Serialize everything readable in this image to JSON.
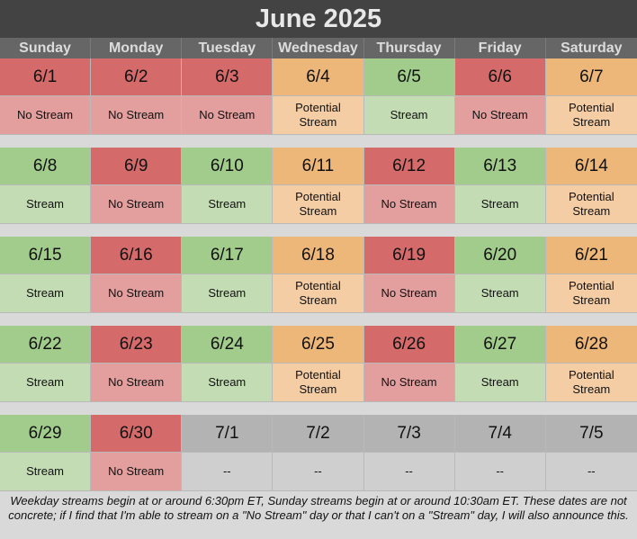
{
  "title": "June 2025",
  "day_names": [
    "Sunday",
    "Monday",
    "Tuesday",
    "Wednesday",
    "Thursday",
    "Friday",
    "Saturday"
  ],
  "status_colors": {
    "no_stream": "#d56a6a",
    "stream": "#a2cc8b",
    "potential": "#eeb77a",
    "outside_month": "#b3b3b3"
  },
  "weeks": [
    [
      {
        "date": "6/1",
        "status": "No Stream",
        "kind": "nostream"
      },
      {
        "date": "6/2",
        "status": "No Stream",
        "kind": "nostream"
      },
      {
        "date": "6/3",
        "status": "No Stream",
        "kind": "nostream"
      },
      {
        "date": "6/4",
        "status": "Potential Stream",
        "kind": "potential"
      },
      {
        "date": "6/5",
        "status": "Stream",
        "kind": "stream"
      },
      {
        "date": "6/6",
        "status": "No Stream",
        "kind": "nostream"
      },
      {
        "date": "6/7",
        "status": "Potential Stream",
        "kind": "potential"
      }
    ],
    [
      {
        "date": "6/8",
        "status": "Stream",
        "kind": "stream"
      },
      {
        "date": "6/9",
        "status": "No Stream",
        "kind": "nostream"
      },
      {
        "date": "6/10",
        "status": "Stream",
        "kind": "stream"
      },
      {
        "date": "6/11",
        "status": "Potential Stream",
        "kind": "potential"
      },
      {
        "date": "6/12",
        "status": "No Stream",
        "kind": "nostream"
      },
      {
        "date": "6/13",
        "status": "Stream",
        "kind": "stream"
      },
      {
        "date": "6/14",
        "status": "Potential Stream",
        "kind": "potential"
      }
    ],
    [
      {
        "date": "6/15",
        "status": "Stream",
        "kind": "stream"
      },
      {
        "date": "6/16",
        "status": "No Stream",
        "kind": "nostream"
      },
      {
        "date": "6/17",
        "status": "Stream",
        "kind": "stream"
      },
      {
        "date": "6/18",
        "status": "Potential Stream",
        "kind": "potential"
      },
      {
        "date": "6/19",
        "status": "No Stream",
        "kind": "nostream"
      },
      {
        "date": "6/20",
        "status": "Stream",
        "kind": "stream"
      },
      {
        "date": "6/21",
        "status": "Potential Stream",
        "kind": "potential"
      }
    ],
    [
      {
        "date": "6/22",
        "status": "Stream",
        "kind": "stream"
      },
      {
        "date": "6/23",
        "status": "No Stream",
        "kind": "nostream"
      },
      {
        "date": "6/24",
        "status": "Stream",
        "kind": "stream"
      },
      {
        "date": "6/25",
        "status": "Potential Stream",
        "kind": "potential"
      },
      {
        "date": "6/26",
        "status": "No Stream",
        "kind": "nostream"
      },
      {
        "date": "6/27",
        "status": "Stream",
        "kind": "stream"
      },
      {
        "date": "6/28",
        "status": "Potential Stream",
        "kind": "potential"
      }
    ],
    [
      {
        "date": "6/29",
        "status": "Stream",
        "kind": "stream"
      },
      {
        "date": "6/30",
        "status": "No Stream",
        "kind": "nostream"
      },
      {
        "date": "7/1",
        "status": "--",
        "kind": "gray"
      },
      {
        "date": "7/2",
        "status": "--",
        "kind": "gray"
      },
      {
        "date": "7/3",
        "status": "--",
        "kind": "gray"
      },
      {
        "date": "7/4",
        "status": "--",
        "kind": "gray"
      },
      {
        "date": "7/5",
        "status": "--",
        "kind": "gray"
      }
    ]
  ],
  "footnote": "Weekday streams begin at or around 6:30pm ET, Sunday streams begin at or around 10:30am ET. These dates are not concrete; if I find that I'm able to stream on a \"No Stream\" day or that I can't on a \"Stream\" day, I will also announce this."
}
